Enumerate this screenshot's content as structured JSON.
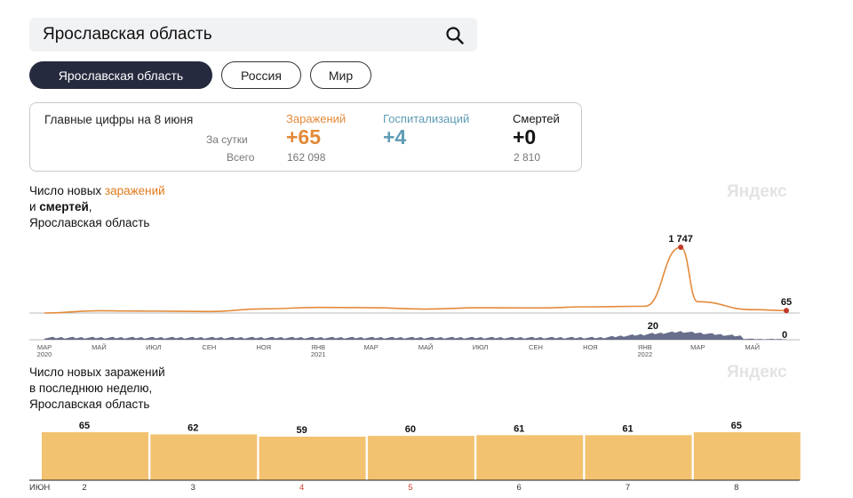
{
  "search": {
    "value": "Ярославская область"
  },
  "chips": [
    "Ярославская область",
    "Россия",
    "Мир"
  ],
  "summary": {
    "title": "Главные цифры на 8 июня",
    "row_daily": "За сутки",
    "row_total": "Всего",
    "infections": {
      "label": "Заражений",
      "daily": "+65",
      "total": "162 098"
    },
    "hospitalizations": {
      "label": "Госпитализаций",
      "daily": "+4"
    },
    "deaths": {
      "label": "Смертей",
      "daily": "+0",
      "total": "2 810"
    }
  },
  "colors": {
    "infections": "#e38a3a",
    "hospitalizations": "#5f9cb5",
    "deaths": "#151515",
    "bars": "#f3c271",
    "navy": "#262a3e",
    "peak": "#c0392b",
    "deaths_area": "#4d5577"
  },
  "chart1": {
    "title_line1_prefix": "Число новых ",
    "title_line1_highlight": "заражений",
    "title_line2_prefix": "и ",
    "title_line2_bold": "смертей",
    "title_line2_suffix": ",",
    "title_line3": "Ярославская область",
    "logo": "Яндекс"
  },
  "chart2": {
    "title_line1": "Число новых заражений",
    "title_line2": "в последнюю неделю,",
    "title_line3": "Ярославская область",
    "logo": "Яндекс"
  },
  "chart_data": [
    {
      "type": "line",
      "series": [
        {
          "name": "заражений",
          "x": [
            "2020-03",
            "2020-05",
            "2020-07",
            "2020-09",
            "2020-11",
            "2021-01",
            "2021-03",
            "2021-05",
            "2021-07",
            "2021-09",
            "2021-11",
            "2022-01",
            "2022-02-10",
            "2022-03",
            "2022-05",
            "2022-06-08"
          ],
          "values": [
            0,
            60,
            50,
            40,
            110,
            150,
            140,
            105,
            140,
            135,
            165,
            180,
            1747,
            300,
            90,
            65
          ]
        },
        {
          "name": "смертей",
          "peak": 20,
          "last": 0
        }
      ],
      "labels": {
        "peak": "1 747",
        "last": "65",
        "deaths_peak": "20",
        "deaths_last": "0"
      },
      "x_ticks": [
        {
          "m": "МАР",
          "y": "2020"
        },
        {
          "m": "МАЙ",
          "y": ""
        },
        {
          "m": "ИЮЛ",
          "y": ""
        },
        {
          "m": "СЕН",
          "y": ""
        },
        {
          "m": "НОЯ",
          "y": ""
        },
        {
          "m": "ЯНВ",
          "y": "2021"
        },
        {
          "m": "МАР",
          "y": ""
        },
        {
          "m": "МАЙ",
          "y": ""
        },
        {
          "m": "ИЮЛ",
          "y": ""
        },
        {
          "m": "СЕН",
          "y": ""
        },
        {
          "m": "НОЯ",
          "y": ""
        },
        {
          "m": "ЯНВ",
          "y": "2022"
        },
        {
          "m": "МАР",
          "y": ""
        },
        {
          "m": "МАЙ",
          "y": ""
        }
      ]
    },
    {
      "type": "bar",
      "categories": [
        "2",
        "3",
        "4",
        "5",
        "6",
        "7",
        "8"
      ],
      "values": [
        65,
        62,
        59,
        60,
        61,
        61,
        65
      ],
      "month_label": "ИЮН",
      "weekend": [
        "4",
        "5"
      ]
    }
  ]
}
